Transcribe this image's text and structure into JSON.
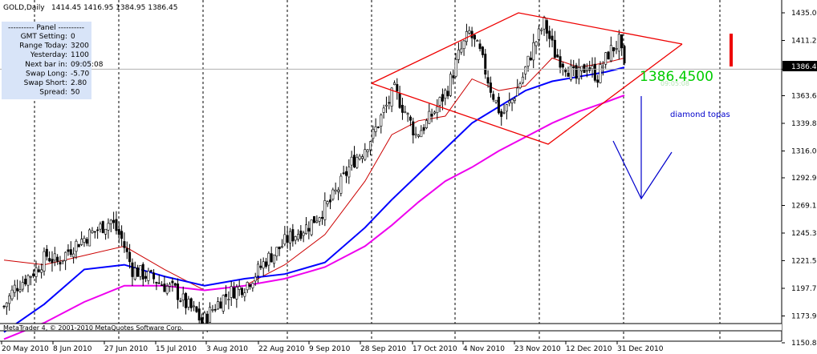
{
  "header": {
    "symbol": "GOLD,Daily",
    "ohlc": "1414.45 1416.95 1384.95 1386.45"
  },
  "panel": {
    "title": "---------- Panel ----------",
    "rows": [
      {
        "label": "GMT Setting:",
        "value": "0"
      },
      {
        "label": "Range Today:",
        "value": "3200"
      },
      {
        "label": "Yesterday:",
        "value": "1100"
      },
      {
        "label": "Next bar in:",
        "value": "09:05:08"
      },
      {
        "label": "Swap Long:",
        "value": "-5.70"
      },
      {
        "label": "Swap Short:",
        "value": "2.80"
      },
      {
        "label": "Spread:",
        "value": "50"
      }
    ]
  },
  "annotations": {
    "big_price": "1386.4500",
    "small_time": "09:05:08",
    "pattern_label": "diamond topas"
  },
  "footer": {
    "copyright": "MetaTrader 4, © 2001-2010 MetaQuotes Software Corp."
  },
  "colors": {
    "candle": "#000000",
    "ma_fast": "#cc0000",
    "ma_mid": "#0000ff",
    "ma_slow": "#ee00ee",
    "diamond": "#ee0000",
    "arrow": "#0000cc",
    "big_price": "#00cc00",
    "label": "#0000cc",
    "current_bar": "#ee0000"
  },
  "chart_data": {
    "type": "candlestick",
    "instrument": "GOLD",
    "timeframe": "Daily",
    "ylim": [
      1150.8,
      1435.0
    ],
    "y_ticks": [
      "1435.00",
      "1411.20",
      "1386.45",
      "1363.60",
      "1339.80",
      "1316.00",
      "1292.90",
      "1269.10",
      "1245.30",
      "1221.55",
      "1197.70",
      "1173.90",
      "1150.80"
    ],
    "current_price": 1386.45,
    "x_labels": [
      "20 May 2010",
      "8 Jun 2010",
      "27 Jun 2010",
      "15 Jul 2010",
      "3 Aug 2010",
      "22 Aug 2010",
      "9 Sep 2010",
      "28 Sep 2010",
      "17 Oct 2010",
      "4 Nov 2010",
      "23 Nov 2010",
      "12 Dec 2010",
      "31 Dec 2010"
    ],
    "series": [
      {
        "type": "candles",
        "close_path": [
          [
            0,
            1182
          ],
          [
            4,
            1198
          ],
          [
            8,
            1206
          ],
          [
            12,
            1214
          ],
          [
            16,
            1226
          ],
          [
            20,
            1220
          ],
          [
            24,
            1230
          ],
          [
            28,
            1238
          ],
          [
            32,
            1244
          ],
          [
            36,
            1250
          ],
          [
            40,
            1256
          ],
          [
            44,
            1240
          ],
          [
            48,
            1214
          ],
          [
            52,
            1210
          ],
          [
            56,
            1206
          ],
          [
            60,
            1200
          ],
          [
            64,
            1196
          ],
          [
            68,
            1184
          ],
          [
            72,
            1176
          ],
          [
            74,
            1168
          ],
          [
            78,
            1180
          ],
          [
            82,
            1190
          ],
          [
            86,
            1196
          ],
          [
            90,
            1200
          ],
          [
            94,
            1210
          ],
          [
            98,
            1222
          ],
          [
            102,
            1230
          ],
          [
            106,
            1240
          ],
          [
            110,
            1246
          ],
          [
            114,
            1252
          ],
          [
            118,
            1262
          ],
          [
            122,
            1272
          ],
          [
            126,
            1288
          ],
          [
            130,
            1306
          ],
          [
            134,
            1316
          ],
          [
            138,
            1330
          ],
          [
            142,
            1350
          ],
          [
            146,
            1368
          ],
          [
            150,
            1350
          ],
          [
            154,
            1330
          ],
          [
            158,
            1340
          ],
          [
            162,
            1354
          ],
          [
            166,
            1370
          ],
          [
            170,
            1398
          ],
          [
            174,
            1418
          ],
          [
            178,
            1400
          ],
          [
            182,
            1370
          ],
          [
            186,
            1346
          ],
          [
            190,
            1360
          ],
          [
            194,
            1380
          ],
          [
            198,
            1406
          ],
          [
            202,
            1426
          ],
          [
            206,
            1400
          ],
          [
            210,
            1390
          ],
          [
            214,
            1378
          ],
          [
            218,
            1390
          ],
          [
            222,
            1380
          ],
          [
            226,
            1400
          ],
          [
            230,
            1410
          ],
          [
            232,
            1386
          ]
        ]
      }
    ],
    "moving_averages": [
      {
        "name": "fast",
        "points": [
          [
            0,
            1222
          ],
          [
            15,
            1218
          ],
          [
            30,
            1226
          ],
          [
            45,
            1234
          ],
          [
            60,
            1214
          ],
          [
            75,
            1196
          ],
          [
            90,
            1200
          ],
          [
            105,
            1218
          ],
          [
            120,
            1244
          ],
          [
            135,
            1290
          ],
          [
            145,
            1330
          ],
          [
            155,
            1342
          ],
          [
            165,
            1346
          ],
          [
            175,
            1378
          ],
          [
            185,
            1368
          ],
          [
            195,
            1372
          ],
          [
            205,
            1396
          ],
          [
            215,
            1388
          ],
          [
            225,
            1392
          ],
          [
            232,
            1396
          ]
        ]
      },
      {
        "name": "mid",
        "points": [
          [
            0,
            1160
          ],
          [
            15,
            1184
          ],
          [
            30,
            1214
          ],
          [
            45,
            1218
          ],
          [
            60,
            1208
          ],
          [
            75,
            1200
          ],
          [
            90,
            1206
          ],
          [
            105,
            1210
          ],
          [
            120,
            1220
          ],
          [
            135,
            1250
          ],
          [
            145,
            1274
          ],
          [
            155,
            1296
          ],
          [
            165,
            1318
          ],
          [
            175,
            1340
          ],
          [
            185,
            1354
          ],
          [
            195,
            1368
          ],
          [
            205,
            1376
          ],
          [
            215,
            1380
          ],
          [
            225,
            1384
          ],
          [
            232,
            1388
          ]
        ]
      },
      {
        "name": "slow",
        "points": [
          [
            0,
            1154
          ],
          [
            15,
            1168
          ],
          [
            30,
            1186
          ],
          [
            45,
            1200
          ],
          [
            60,
            1200
          ],
          [
            75,
            1196
          ],
          [
            90,
            1200
          ],
          [
            105,
            1206
          ],
          [
            120,
            1216
          ],
          [
            135,
            1234
          ],
          [
            145,
            1252
          ],
          [
            155,
            1272
          ],
          [
            165,
            1290
          ],
          [
            175,
            1302
          ],
          [
            185,
            1316
          ],
          [
            195,
            1328
          ],
          [
            205,
            1340
          ],
          [
            215,
            1350
          ],
          [
            225,
            1358
          ],
          [
            232,
            1364
          ]
        ]
      }
    ]
  }
}
